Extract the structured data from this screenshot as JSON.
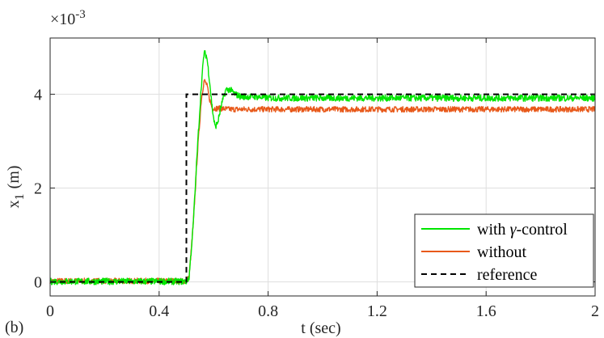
{
  "chart_data": {
    "type": "line",
    "title": "",
    "panel_label": "(b)",
    "xlabel": "t (sec)",
    "ylabel_main": "x",
    "ylabel_sub": "1",
    "ylabel_unit": "(m)",
    "y_exponent_base": "×10",
    "y_exponent_power": "-3",
    "xlim": [
      0,
      2
    ],
    "ylim": [
      -0.0003,
      0.0052
    ],
    "x_ticks": [
      0,
      0.4,
      0.8,
      1.2,
      1.6,
      2
    ],
    "x_tick_labels": [
      "0",
      "0.4",
      "0.8",
      "1.2",
      "1.6",
      "2"
    ],
    "y_ticks": [
      0,
      0.002,
      0.004
    ],
    "y_tick_labels": [
      "0",
      "2",
      "4"
    ],
    "grid": true,
    "legend_position": "bottom-right",
    "legend": {
      "label_gamma_prefix": "with ",
      "label_gamma_symbol": "γ",
      "label_gamma_suffix": "-control",
      "label_without": "without",
      "label_reference": "reference"
    },
    "series": [
      {
        "name": "with γ-control",
        "color": "#00e600",
        "style": "solid",
        "x": [
          0,
          0.5,
          0.51,
          0.525,
          0.54,
          0.555,
          0.565,
          0.575,
          0.585,
          0.595,
          0.605,
          0.615,
          0.63,
          0.645,
          0.66,
          0.68,
          0.7,
          0.75,
          0.8,
          1.0,
          1.2,
          1.4,
          1.6,
          1.8,
          2.0
        ],
        "y": [
          1e-05,
          1e-05,
          0.0001,
          0.0012,
          0.0028,
          0.0042,
          0.0049,
          0.0048,
          0.0043,
          0.0037,
          0.0033,
          0.0034,
          0.0038,
          0.0041,
          0.0041,
          0.004,
          0.00395,
          0.00395,
          0.00392,
          0.00392,
          0.00392,
          0.00392,
          0.00392,
          0.00392,
          0.00392
        ]
      },
      {
        "name": "without",
        "color": "#e8591a",
        "style": "solid",
        "x": [
          0,
          0.5,
          0.51,
          0.525,
          0.54,
          0.555,
          0.565,
          0.575,
          0.585,
          0.595,
          0.605,
          0.62,
          0.64,
          0.66,
          0.7,
          0.8,
          1.0,
          1.2,
          1.4,
          1.6,
          1.8,
          2.0
        ],
        "y": [
          2e-05,
          2e-05,
          0.0001,
          0.0012,
          0.0027,
          0.0039,
          0.0043,
          0.0042,
          0.0039,
          0.0037,
          0.0037,
          0.0037,
          0.00369,
          0.00368,
          0.00368,
          0.00368,
          0.00368,
          0.00368,
          0.00368,
          0.00368,
          0.00368,
          0.00368
        ]
      },
      {
        "name": "reference",
        "color": "#000000",
        "style": "dashed",
        "x": [
          0,
          0.5,
          0.5,
          2.0
        ],
        "y": [
          0,
          0,
          0.004,
          0.004
        ]
      }
    ]
  }
}
